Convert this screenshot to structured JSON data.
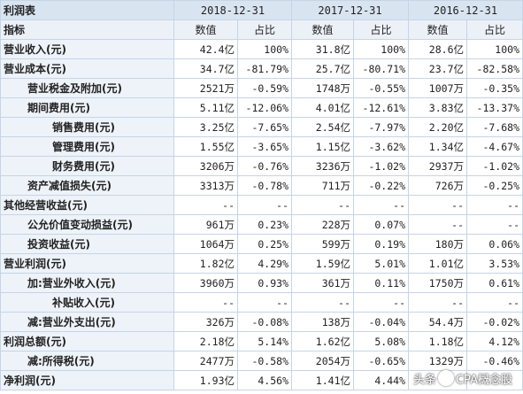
{
  "table": {
    "title": "利润表",
    "years": [
      "2018-12-31",
      "2017-12-31",
      "2016-12-31"
    ],
    "index_label": "指标",
    "value_label": "数值",
    "ratio_label": "占比",
    "rows": [
      {
        "label": "营业收入(元)",
        "indent": 0,
        "cells": [
          "42.4亿",
          "100%",
          "31.8亿",
          "100%",
          "28.6亿",
          "100%"
        ]
      },
      {
        "label": "营业成本(元)",
        "indent": 0,
        "cells": [
          "34.7亿",
          "-81.79%",
          "25.7亿",
          "-80.71%",
          "23.7亿",
          "-82.58%"
        ]
      },
      {
        "label": "营业税金及附加(元)",
        "indent": 1,
        "cells": [
          "2521万",
          "-0.59%",
          "1748万",
          "-0.55%",
          "1007万",
          "-0.35%"
        ]
      },
      {
        "label": "期间费用(元)",
        "indent": 1,
        "cells": [
          "5.11亿",
          "-12.06%",
          "4.01亿",
          "-12.61%",
          "3.83亿",
          "-13.37%"
        ]
      },
      {
        "label": "销售费用(元)",
        "indent": 2,
        "cells": [
          "3.25亿",
          "-7.65%",
          "2.54亿",
          "-7.97%",
          "2.20亿",
          "-7.68%"
        ]
      },
      {
        "label": "管理费用(元)",
        "indent": 2,
        "cells": [
          "1.55亿",
          "-3.65%",
          "1.15亿",
          "-3.62%",
          "1.34亿",
          "-4.67%"
        ]
      },
      {
        "label": "财务费用(元)",
        "indent": 2,
        "cells": [
          "3206万",
          "-0.76%",
          "3236万",
          "-1.02%",
          "2937万",
          "-1.02%"
        ]
      },
      {
        "label": "资产减值损失(元)",
        "indent": 1,
        "cells": [
          "3313万",
          "-0.78%",
          "711万",
          "-0.22%",
          "726万",
          "-0.25%"
        ]
      },
      {
        "label": "其他经营收益(元)",
        "indent": 0,
        "cells": [
          "--",
          "--",
          "--",
          "--",
          "--",
          "--"
        ]
      },
      {
        "label": "公允价值变动损益(元)",
        "indent": 1,
        "cells": [
          "961万",
          "0.23%",
          "228万",
          "0.07%",
          "--",
          "--"
        ]
      },
      {
        "label": "投资收益(元)",
        "indent": 1,
        "cells": [
          "1064万",
          "0.25%",
          "599万",
          "0.19%",
          "180万",
          "0.06%"
        ]
      },
      {
        "label": "营业利润(元)",
        "indent": 0,
        "cells": [
          "1.82亿",
          "4.29%",
          "1.59亿",
          "5.01%",
          "1.01亿",
          "3.53%"
        ]
      },
      {
        "label": "加:营业外收入(元)",
        "indent": 1,
        "cells": [
          "3960万",
          "0.93%",
          "361万",
          "0.11%",
          "1750万",
          "0.61%"
        ]
      },
      {
        "label": "补贴收入(元)",
        "indent": 2,
        "cells": [
          "--",
          "--",
          "--",
          "--",
          "--",
          "--"
        ]
      },
      {
        "label": "减:营业外支出(元)",
        "indent": 1,
        "cells": [
          "326万",
          "-0.08%",
          "138万",
          "-0.04%",
          "54.4万",
          "-0.02%"
        ]
      },
      {
        "label": "利润总额(元)",
        "indent": 0,
        "cells": [
          "2.18亿",
          "5.14%",
          "1.62亿",
          "5.08%",
          "1.18亿",
          "4.12%"
        ]
      },
      {
        "label": "减:所得税(元)",
        "indent": 1,
        "cells": [
          "2477万",
          "-0.58%",
          "2054万",
          "-0.65%",
          "1329万",
          "-0.46%"
        ]
      },
      {
        "label": "净利润(元)",
        "indent": 0,
        "cells": [
          "1.93亿",
          "4.56%",
          "1.41亿",
          "4.44%",
          "",
          ""
        ]
      }
    ]
  },
  "watermark": {
    "text_before": "头条",
    "text_after": "CPA概念股"
  },
  "colors": {
    "header_bg": "#d9e4f1",
    "label_bg": "#eef3f9",
    "border": "#c6d4e6"
  }
}
